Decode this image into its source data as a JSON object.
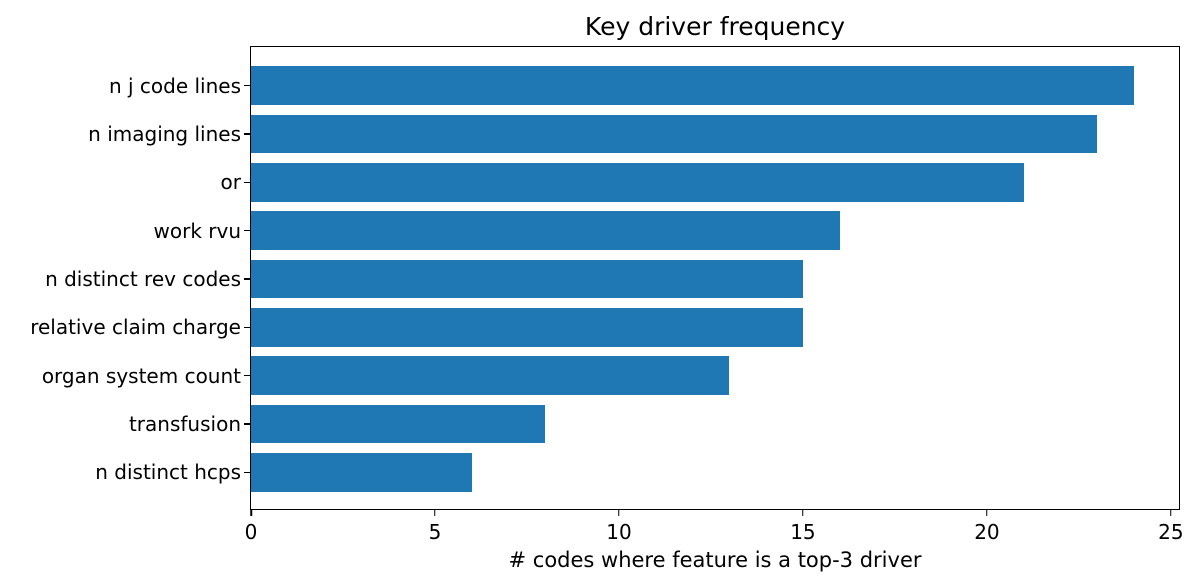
{
  "chart_data": {
    "type": "bar",
    "orientation": "horizontal",
    "title": "Key driver frequency",
    "xlabel": "# codes where feature is a top-3 driver",
    "ylabel": "",
    "categories": [
      "n j code lines",
      "n imaging lines",
      "or",
      "work rvu",
      "n distinct rev codes",
      "relative claim charge",
      "organ system count",
      "transfusion",
      "n distinct hcps"
    ],
    "values": [
      24,
      23,
      21,
      16,
      15,
      15,
      13,
      8,
      6
    ],
    "xticks": [
      0,
      5,
      10,
      15,
      20,
      25
    ],
    "xlim": [
      0,
      25.22
    ],
    "bar_color": "#1f77b4",
    "bar_rel_height": 0.8,
    "axis_color": "#000000",
    "background": "#ffffff",
    "grid": false,
    "legend": null
  }
}
